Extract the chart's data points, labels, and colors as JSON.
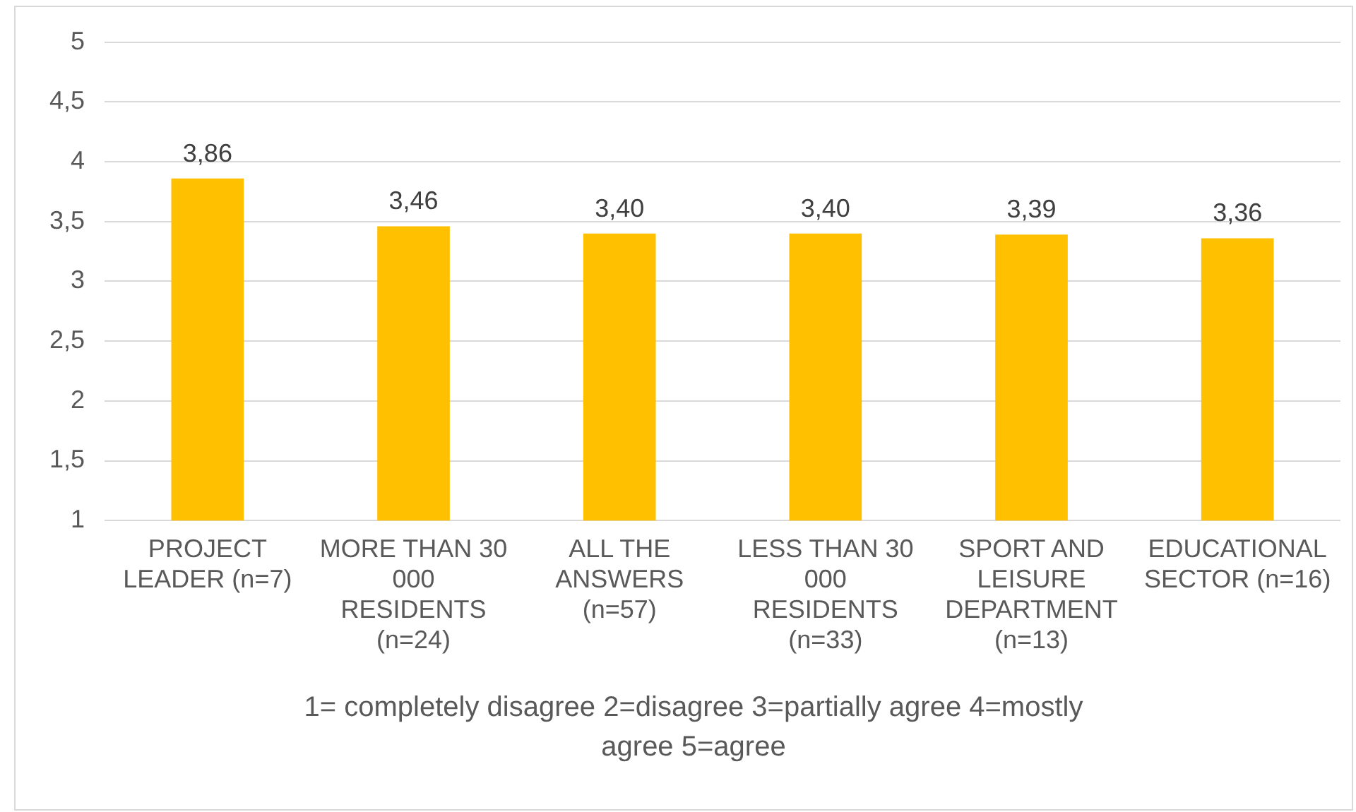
{
  "chart_data": {
    "type": "bar",
    "categories": [
      "PROJECT LEADER (n=7)",
      "MORE THAN 30 000 RESIDENTS (n=24)",
      "ALL THE ANSWERS (n=57)",
      "LESS THAN 30 000 RESIDENTS (n=33)",
      "SPORT AND LEISURE DEPARTMENT (n=13)",
      "EDUCATIONAL SECTOR (n=16)"
    ],
    "values": [
      3.86,
      3.46,
      3.4,
      3.4,
      3.39,
      3.36
    ],
    "value_labels": [
      "3,86",
      "3,46",
      "3,40",
      "3,40",
      "3,39",
      "3,36"
    ],
    "color": "#ffc000",
    "ylim": [
      1,
      5
    ],
    "yticks": [
      1,
      {
        "value": 1.5,
        "label": "1,5"
      },
      2,
      {
        "value": 2.5,
        "label": "2,5"
      },
      3,
      {
        "value": 3.5,
        "label": "3,5"
      },
      4,
      {
        "value": 4.5,
        "label": "4,5"
      },
      5
    ],
    "grid": "y",
    "legend": false,
    "annotations": [
      "1= completely disagree 2=disagree 3=partially agree 4=mostly agree 5=agree"
    ]
  }
}
